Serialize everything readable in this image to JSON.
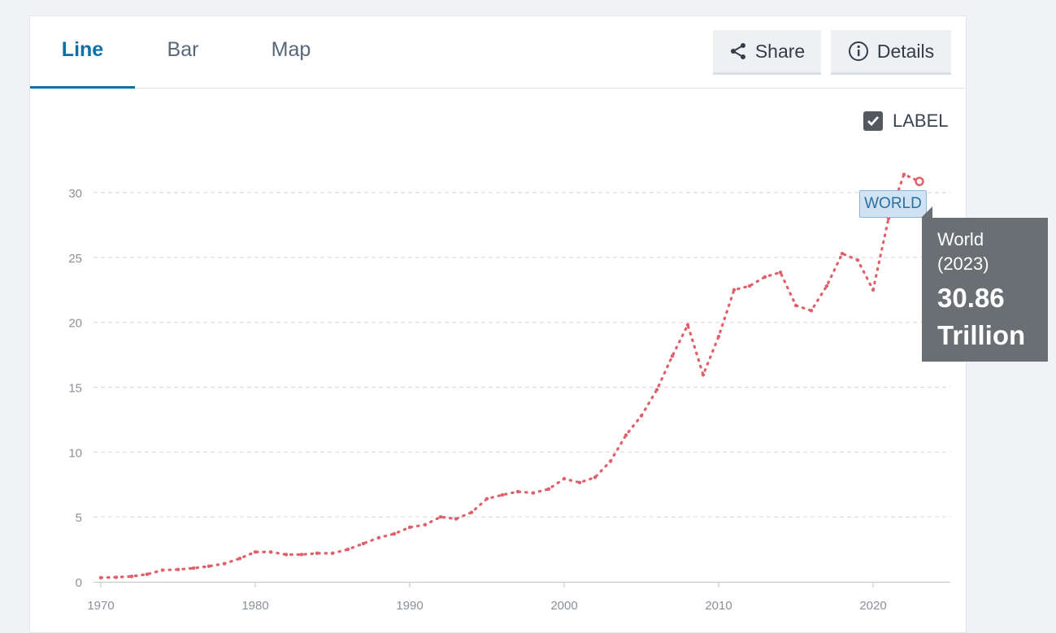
{
  "tabs": [
    {
      "label": "Line",
      "active": true
    },
    {
      "label": "Bar",
      "active": false
    },
    {
      "label": "Map",
      "active": false
    }
  ],
  "toolbar": {
    "share_label": "Share",
    "share_icon": "share-icon",
    "details_label": "Details",
    "details_icon": "info-icon"
  },
  "label_toggle": {
    "label": "LABEL",
    "checked": true
  },
  "tooltip": {
    "name": "World",
    "year": "(2023)",
    "value_number": "30.86",
    "value_unit": "Trillion"
  },
  "colors": {
    "series": "#e0606b",
    "active_tab": "#0d6fa8",
    "tooltip_bg": "#6a6f73",
    "label_bg": "#cfe3f4"
  },
  "chart_data": {
    "type": "line",
    "series": [
      {
        "name": "WORLD",
        "x": [
          1970,
          1971,
          1972,
          1973,
          1974,
          1975,
          1976,
          1977,
          1978,
          1979,
          1980,
          1981,
          1982,
          1983,
          1984,
          1985,
          1986,
          1987,
          1988,
          1989,
          1990,
          1991,
          1992,
          1993,
          1994,
          1995,
          1996,
          1997,
          1998,
          1999,
          2000,
          2001,
          2002,
          2003,
          2004,
          2005,
          2006,
          2007,
          2008,
          2009,
          2010,
          2011,
          2012,
          2013,
          2014,
          2015,
          2016,
          2017,
          2018,
          2019,
          2020,
          2021,
          2022,
          2023
        ],
        "values": [
          0.32,
          0.35,
          0.42,
          0.58,
          0.9,
          0.95,
          1.05,
          1.2,
          1.4,
          1.8,
          2.3,
          2.3,
          2.1,
          2.1,
          2.2,
          2.2,
          2.5,
          2.95,
          3.4,
          3.7,
          4.2,
          4.4,
          5.0,
          4.85,
          5.35,
          6.4,
          6.7,
          6.95,
          6.85,
          7.15,
          7.95,
          7.65,
          8.05,
          9.3,
          11.3,
          12.8,
          14.8,
          17.4,
          19.8,
          15.95,
          18.9,
          22.5,
          22.8,
          23.5,
          23.85,
          21.3,
          20.9,
          22.8,
          25.3,
          24.8,
          22.5,
          28.0,
          31.4,
          30.86
        ]
      }
    ],
    "xticks": [
      1970,
      1980,
      1990,
      2000,
      2010,
      2020
    ],
    "yticks": [
      0,
      5,
      10,
      15,
      20,
      25,
      30
    ],
    "xlim": [
      1970,
      2025
    ],
    "ylim": [
      0,
      30
    ],
    "grid": true
  }
}
